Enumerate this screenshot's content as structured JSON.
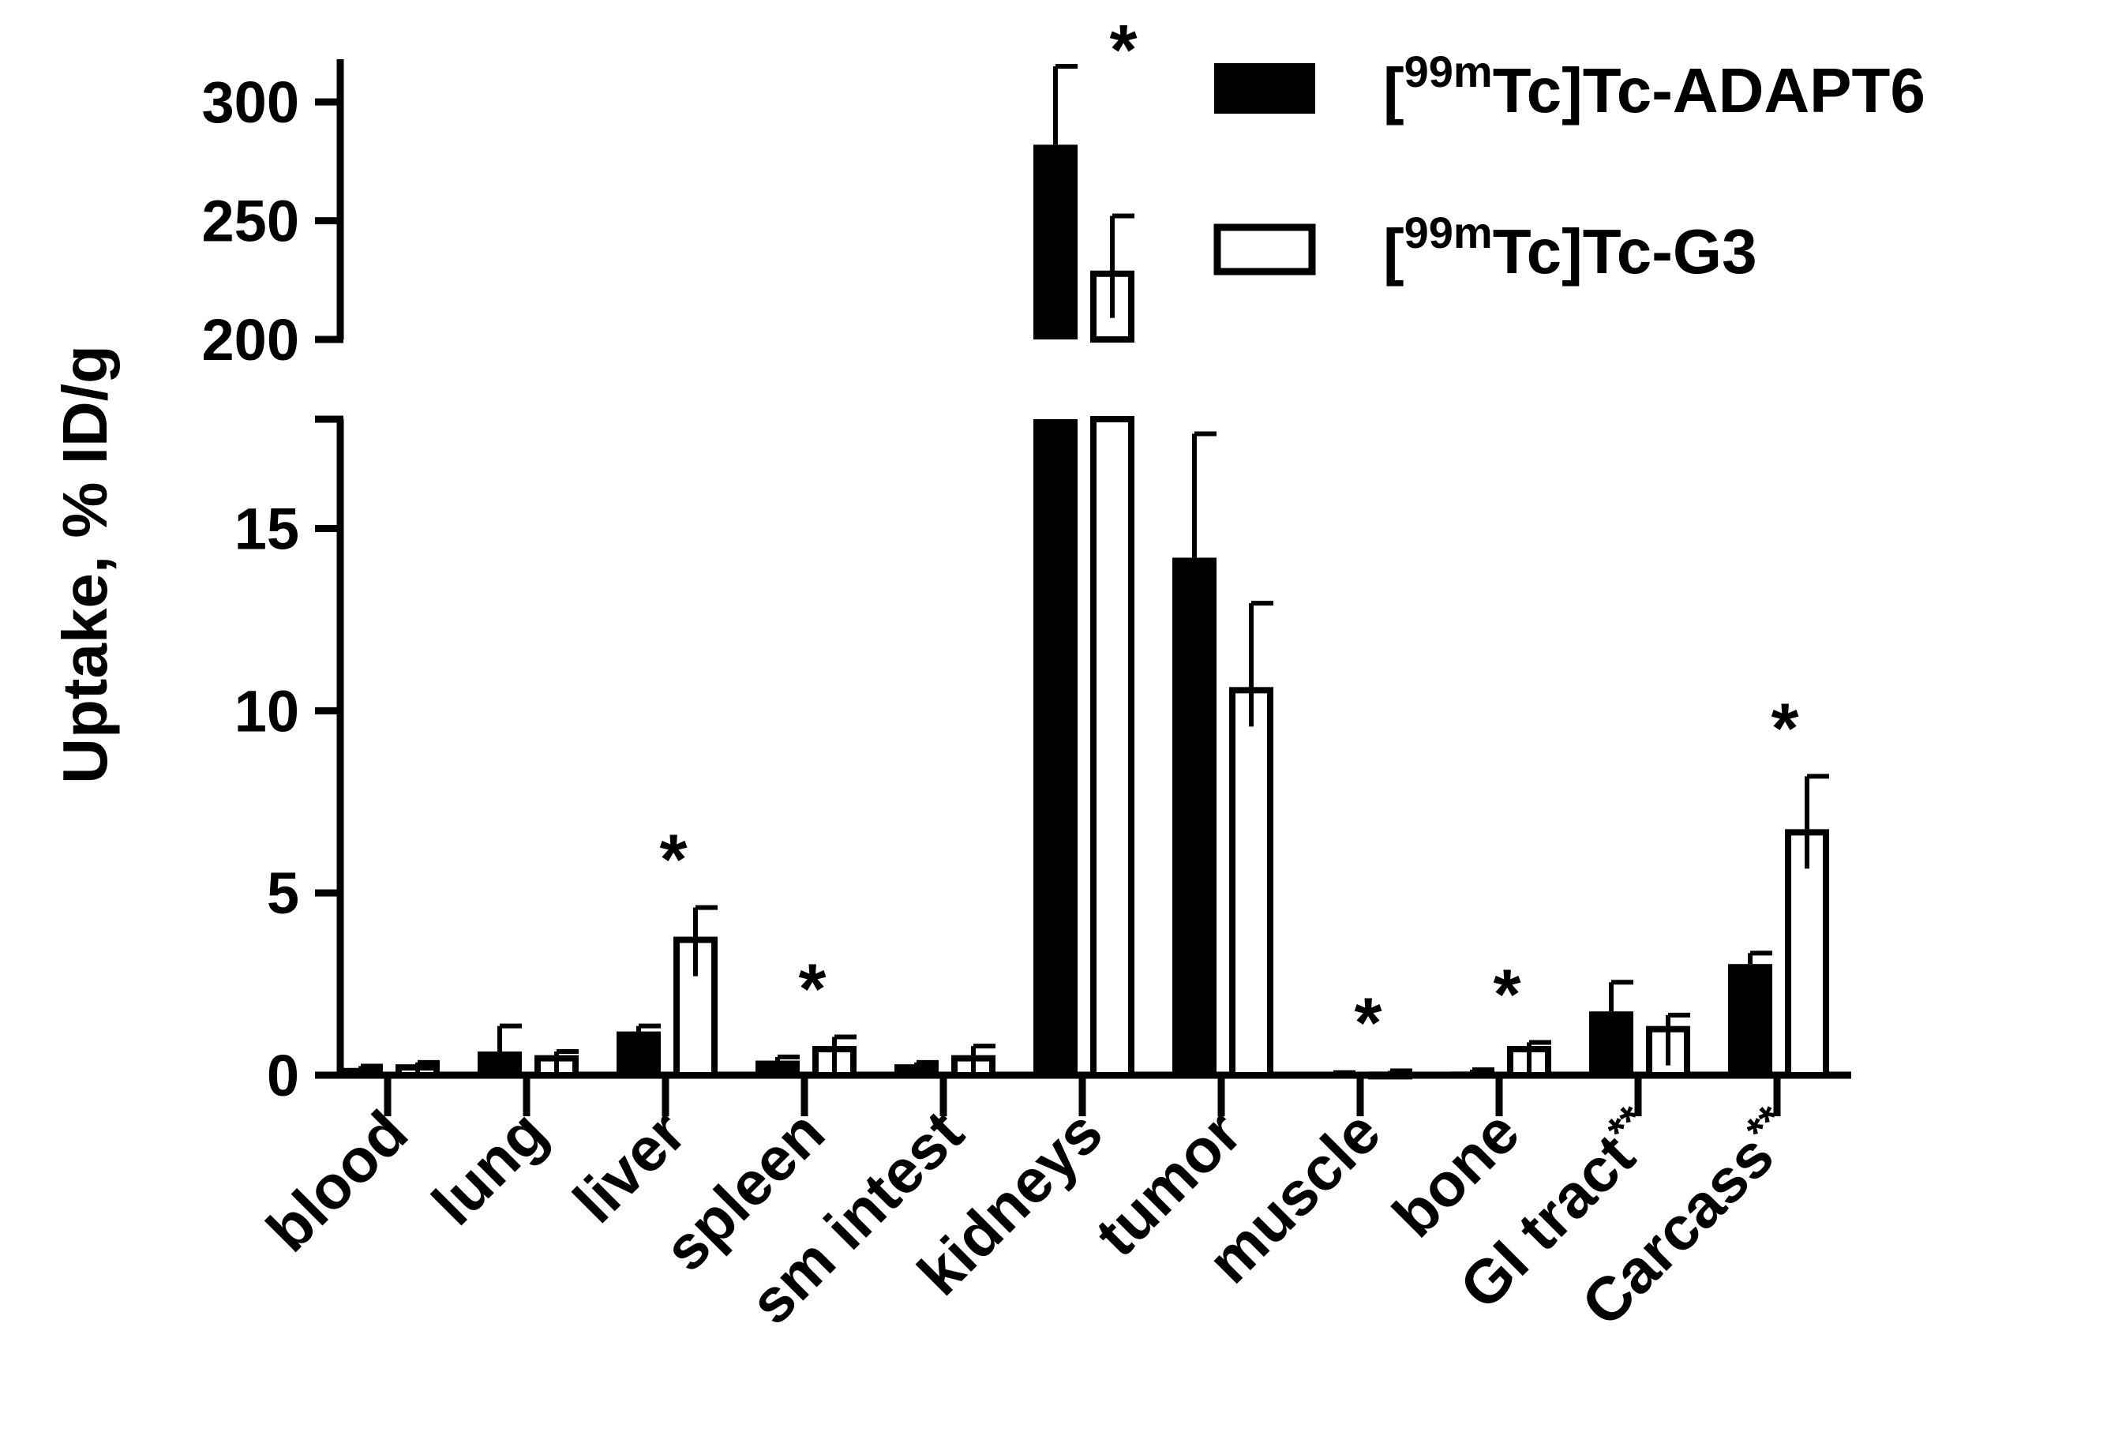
{
  "chart_data": {
    "type": "bar",
    "ylabel": "Uptake, % ID/g",
    "categories": [
      "blood",
      "lung",
      "liver",
      "spleen",
      "sm intest",
      "kidneys",
      "tumor",
      "muscle",
      "bone",
      "GI tract",
      "Carcass"
    ],
    "category_suffix": [
      "",
      "",
      "",
      "",
      "",
      "",
      "",
      "",
      "",
      "**",
      "**"
    ],
    "series": [
      {
        "name": "[99mTc]Tc-ADAPT6",
        "name_parts": {
          "pre": "[",
          "sup": "99m",
          "post": "Tc]Tc-ADAPT6"
        },
        "fill": "#000000",
        "values": [
          0.2,
          0.65,
          1.2,
          0.4,
          0.3,
          282,
          14.2,
          0.05,
          0.1,
          1.75,
          3.05
        ],
        "errors": [
          0.05,
          0.7,
          0.15,
          0.1,
          0.05,
          33,
          3.4,
          0.02,
          0.05,
          0.8,
          0.3
        ]
      },
      {
        "name": "[99mTc]Tc-G3",
        "name_parts": {
          "pre": "[",
          "sup": "99m",
          "post": "Tc]Tc-G3"
        },
        "fill": "#ffffff",
        "values": [
          0.3,
          0.55,
          3.8,
          0.8,
          0.55,
          229,
          10.65,
          0.1,
          0.8,
          1.35,
          6.75
        ],
        "errors": [
          0.05,
          0.1,
          0.8,
          0.25,
          0.25,
          23,
          2.3,
          0.02,
          0.1,
          0.3,
          1.45
        ]
      }
    ],
    "significance": [
      "",
      "",
      "*",
      "*",
      "",
      "*",
      "",
      "*",
      "*",
      "",
      "*"
    ],
    "y_axis": {
      "broken": true,
      "lower_segment": {
        "ylim": [
          0,
          18
        ],
        "ticks": [
          0,
          5,
          10,
          15
        ],
        "tick_labels": [
          "0",
          "5",
          "10",
          "15"
        ]
      },
      "upper_segment": {
        "ylim": [
          200,
          318
        ],
        "ticks": [
          200,
          250,
          300
        ],
        "tick_labels": [
          "200",
          "250",
          "300"
        ]
      }
    },
    "legend_position": "top-right",
    "grid": false
  }
}
